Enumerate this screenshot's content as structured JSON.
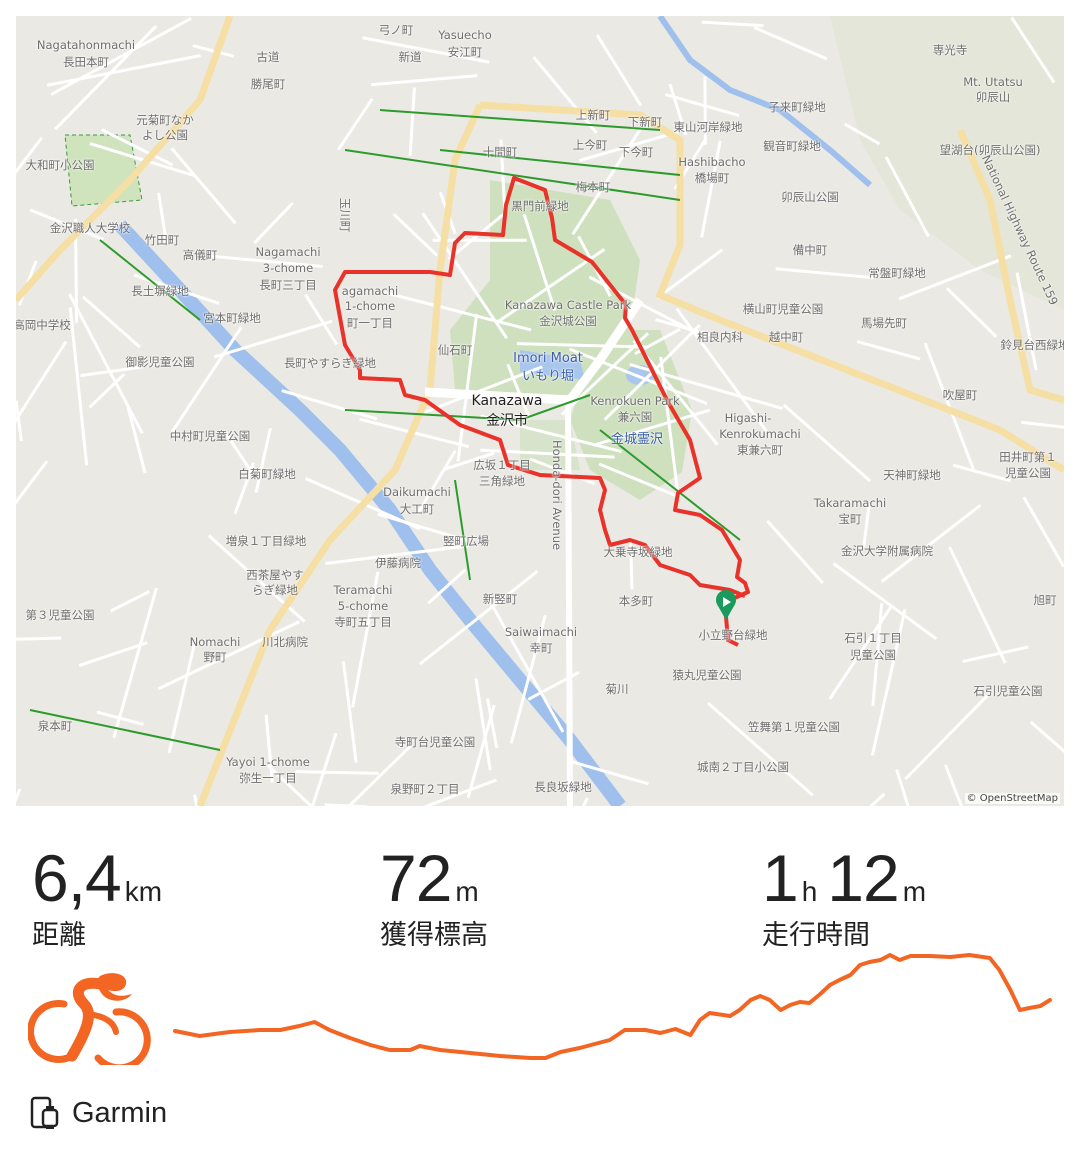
{
  "map": {
    "attribution": "© OpenStreetMap",
    "route_color": "#e8322a",
    "start_marker_color": "#1a9a5c",
    "labels": [
      "Nagatahonmachi",
      "長田本町",
      "古道",
      "新道",
      "Yasuecho",
      "安江町",
      "勝尾町",
      "元菊町なか",
      "よし公園",
      "大和町小公園",
      "金沢職人大学校",
      "長土塀緑地",
      "宮本町緑地",
      "高岡中学校",
      "御影児童公園",
      "長町やすらぎ緑地",
      "Nagamachi",
      "3-chome",
      "長町三丁目",
      "十間町",
      "上今町",
      "下今町",
      "上新町",
      "下新町",
      "東山河岸緑地",
      "Hashibacho",
      "橋場町",
      "観音町緑地",
      "子来町緑地",
      "卯辰山公園",
      "望湖台(卯辰山公園)",
      "Mt. Utatsu",
      "卯辰山",
      "専光寺",
      "常盤町緑地",
      "横山町児童公園",
      "相良内科",
      "越中町",
      "馬場先町",
      "Kanazawa Castle Park",
      "金沢城公園",
      "Imori Moat",
      "いもり堀",
      "Kanazawa",
      "金沢市",
      "Kenrokuen Park",
      "兼六園",
      "金城霊沢",
      "Higashi-",
      "Kenrokumachi",
      "東兼六町",
      "広坂１丁目",
      "三角緑地",
      "中村町児童公園",
      "白菊町緑地",
      "Daikumachi",
      "大工町",
      "竪町広場",
      "伊藤病院",
      "増泉１丁目緑地",
      "西茶屋やす",
      "らぎ緑地",
      "Teramachi",
      "5-chome",
      "寺町五丁目",
      "新竪町",
      "本多町",
      "Saiwaimachi",
      "幸町",
      "菊川",
      "小立野台緑地",
      "猿丸児童公園",
      "石引１丁目",
      "児童公園",
      "金沢大学附属病院",
      "Takaramachi",
      "宝町",
      "天神町緑地",
      "田井町第１",
      "児童公園",
      "石引児童公園",
      "笠舞第１児童公園",
      "城南２丁目小公園",
      "寺町台児童公園",
      "長良坂緑地",
      "泉野町２丁目",
      "Yayoi 1-chome",
      "弥生一丁目",
      "泉本町",
      "第３児童公園",
      "川北病院",
      "Nomachi",
      "野町",
      "鈴見台西緑地",
      "吹屋町",
      "旭町",
      "agamachi",
      "1-chome",
      "町一丁目",
      "仙石町",
      "Honda-dori Avenue",
      "黒門前緑地",
      "竹田町",
      "高儀町",
      "玉川町",
      "National Highway Route 159",
      "弓ノ町",
      "梅本町",
      "備中町",
      "大乗寺坂緑地"
    ]
  },
  "stats": [
    {
      "value": "6,4",
      "unit": "km",
      "label": "距離"
    },
    {
      "value": "72",
      "unit": "m",
      "label": "獲得標高"
    },
    {
      "value_h": "1",
      "unit_h": "h",
      "value_m": "12",
      "unit_m": "m",
      "label": "走行時間"
    }
  ],
  "activity": {
    "type_icon": "cycling-icon",
    "color": "#f26522"
  },
  "elevation_profile": {
    "distance_km": [
      0,
      0.11,
      0.18,
      0.4,
      0.62,
      0.77,
      0.91,
      1.02,
      1.13,
      1.28,
      1.43,
      1.57,
      1.72,
      1.79,
      1.94,
      2.16,
      2.38,
      2.6,
      2.71,
      2.82,
      2.96,
      3.07,
      3.18,
      3.29,
      3.44,
      3.55,
      3.66,
      3.77,
      3.84,
      3.91,
      4.06,
      4.13,
      4.21,
      4.28,
      4.35,
      4.43,
      4.5,
      4.57,
      4.64,
      4.72,
      4.79,
      4.86,
      4.94,
      5.01,
      5.08,
      5.16,
      5.23,
      5.3,
      5.38,
      5.52,
      5.67,
      5.81,
      5.96,
      6.03,
      6.11,
      6.18,
      6.25,
      6.33,
      6.4
    ],
    "elevation": [
      29,
      26,
      24,
      28,
      30,
      30,
      34,
      38,
      30,
      22,
      15,
      10,
      10,
      14,
      10,
      7,
      4,
      2,
      2,
      8,
      12,
      16,
      20,
      30,
      30,
      27,
      31,
      25,
      40,
      47,
      44,
      50,
      60,
      64,
      60,
      50,
      55,
      58,
      57,
      66,
      75,
      80,
      85,
      95,
      98,
      100,
      105,
      100,
      104,
      104,
      103,
      105,
      102,
      90,
      70,
      50,
      52,
      54,
      60
    ]
  },
  "device": {
    "icon": "device-icon",
    "name": "Garmin"
  }
}
